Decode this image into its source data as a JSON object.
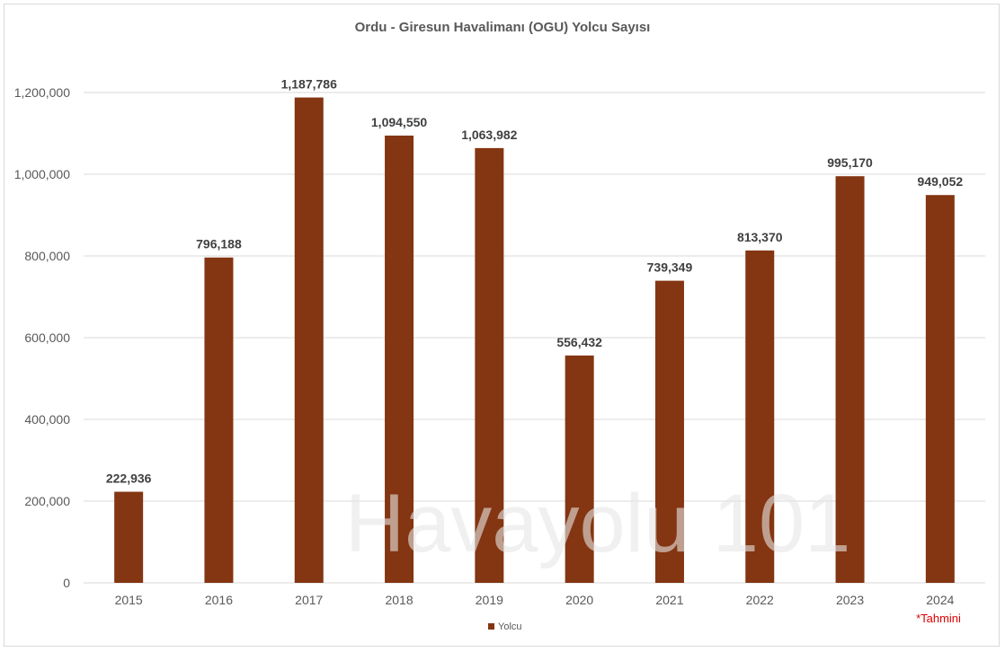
{
  "chart_data": {
    "type": "bar",
    "title": "Ordu - Giresun Havalimanı (OGU) Yolcu Sayısı",
    "categories": [
      "2015",
      "2016",
      "2017",
      "2018",
      "2019",
      "2020",
      "2021",
      "2022",
      "2023",
      "2024"
    ],
    "series": [
      {
        "name": "Yolcu",
        "values": [
          222936,
          796188,
          1187786,
          1094550,
          1063982,
          556432,
          739349,
          813370,
          995170,
          949052
        ],
        "labels": [
          "222,936",
          "796,188",
          "1,187,786",
          "1,094,550",
          "1,063,982",
          "556,432",
          "739,349",
          "813,370",
          "995,170",
          "949,052"
        ],
        "color": "#843511"
      }
    ],
    "ylim": [
      0,
      1200000
    ],
    "yticks": [
      0,
      200000,
      400000,
      600000,
      800000,
      1000000,
      1200000
    ],
    "ytick_labels": [
      "0",
      "200,000",
      "400,000",
      "600,000",
      "800,000",
      "1,000,000",
      "1,200,000"
    ],
    "xlabel": "",
    "ylabel": "",
    "grid": true,
    "legend_position": "bottom",
    "note": "*Tahmini",
    "watermark": "Havayolu 101"
  }
}
